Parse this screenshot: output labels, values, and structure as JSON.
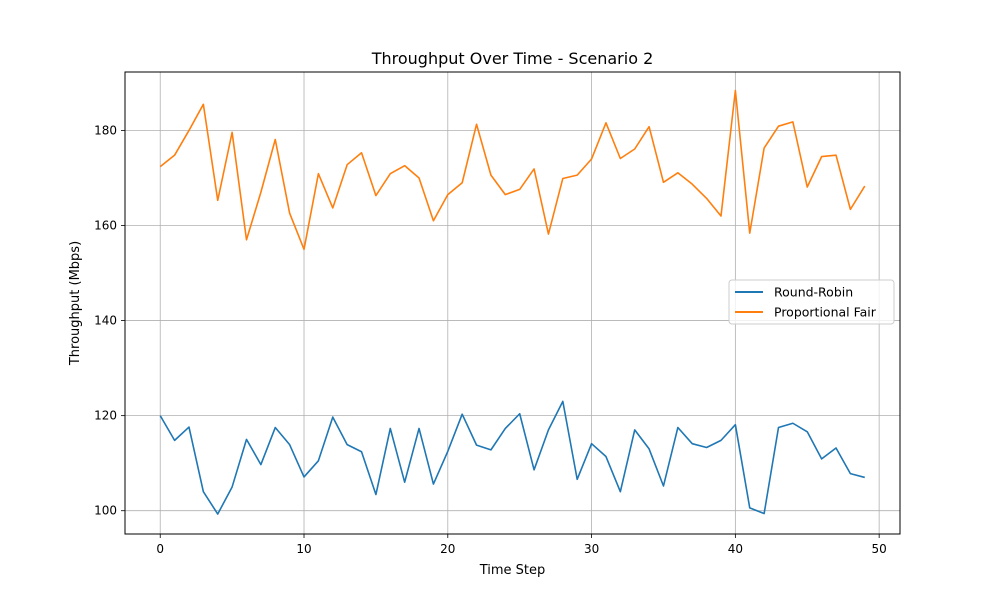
{
  "chart_data": {
    "type": "line",
    "title": "Throughput Over Time - Scenario 2",
    "xlabel": "Time Step",
    "ylabel": "Throughput (Mbps)",
    "xlim": [
      -2.45,
      51.45
    ],
    "ylim": [
      95.1,
      192.3
    ],
    "xticks": [
      0,
      10,
      20,
      30,
      40,
      50
    ],
    "yticks": [
      100,
      120,
      140,
      160,
      180
    ],
    "grid": true,
    "legend_position": "center-right",
    "x": [
      0,
      1,
      2,
      3,
      4,
      5,
      6,
      7,
      8,
      9,
      10,
      11,
      12,
      13,
      14,
      15,
      16,
      17,
      18,
      19,
      20,
      21,
      22,
      23,
      24,
      25,
      26,
      27,
      28,
      29,
      30,
      31,
      32,
      33,
      34,
      35,
      36,
      37,
      38,
      39,
      40,
      41,
      42,
      43,
      44,
      45,
      46,
      47,
      48,
      49
    ],
    "series": [
      {
        "name": "Round-Robin",
        "color": "#1f77b4",
        "values": [
          120.0,
          114.8,
          117.6,
          104.0,
          99.3,
          105.0,
          115.0,
          109.7,
          117.5,
          113.9,
          107.1,
          110.5,
          119.7,
          113.9,
          112.4,
          103.4,
          117.3,
          106.0,
          117.3,
          105.6,
          112.5,
          120.3,
          113.8,
          112.8,
          117.3,
          120.4,
          108.6,
          117.0,
          123.0,
          106.6,
          114.1,
          111.4,
          104.0,
          117.0,
          113.0,
          105.2,
          117.5,
          114.1,
          113.3,
          114.8,
          118.1,
          100.6,
          99.4,
          117.5,
          118.4,
          116.6,
          110.9,
          113.2,
          107.8,
          107.0
        ]
      },
      {
        "name": "Proportional Fair",
        "color": "#ff7f0e",
        "values": [
          172.4,
          174.8,
          180.0,
          185.5,
          165.3,
          179.6,
          157.0,
          167.0,
          178.1,
          162.6,
          155.0,
          170.9,
          163.7,
          172.8,
          175.3,
          166.3,
          170.9,
          172.6,
          170.0,
          161.0,
          166.5,
          169.0,
          181.3,
          170.6,
          166.5,
          167.6,
          171.9,
          158.2,
          169.9,
          170.6,
          174.0,
          181.6,
          174.1,
          176.1,
          180.8,
          169.1,
          171.1,
          168.7,
          165.7,
          162.0,
          188.4,
          158.4,
          176.3,
          180.9,
          181.8,
          168.1,
          174.5,
          174.8,
          163.4,
          168.3
        ]
      }
    ]
  }
}
